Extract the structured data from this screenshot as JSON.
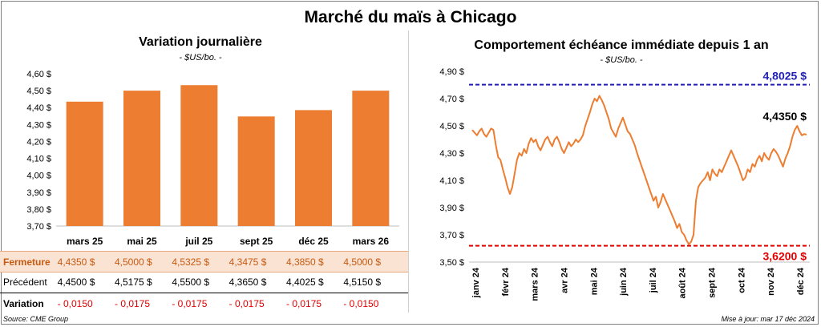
{
  "title": "Marché du maïs à Chicago",
  "left": {
    "title": "Variation journalière",
    "unit": "- $US/bo. -"
  },
  "right": {
    "title": "Comportement échéance immédiate depuis 1 an",
    "unit": "- $US/bo. -"
  },
  "table": {
    "fermeture_label": "Fermeture",
    "fermeture": [
      "4,4350  $",
      "4,5000  $",
      "4,5325  $",
      "4,3475  $",
      "4,3850  $",
      "4,5000  $"
    ],
    "precedent_label": "Précédent",
    "precedent": [
      "4,4500  $",
      "4,5175  $",
      "4,5500  $",
      "4,3650  $",
      "4,4025  $",
      "4,5150  $"
    ],
    "variation_label": "Variation",
    "variation": [
      "- 0,0150",
      "- 0,0175",
      "- 0,0175",
      "- 0,0175",
      "- 0,0175",
      "- 0,0150"
    ]
  },
  "footer": {
    "source": "Source: CME Group",
    "updated": "Mise à jour: mar 17 déc 2024"
  },
  "colors": {
    "bar": "#ed7d31",
    "line": "#ed7d31",
    "high": "#1f1fb4",
    "low": "#e00000"
  },
  "chart_data": [
    {
      "type": "bar",
      "categories": [
        "mars 25",
        "mai 25",
        "juil 25",
        "sept 25",
        "déc 25",
        "mars 26"
      ],
      "values": [
        4.435,
        4.5,
        4.5325,
        4.3475,
        4.385,
        4.5
      ],
      "ylim": [
        3.7,
        4.6
      ],
      "yticks": [
        "3,70 $",
        "3,80 $",
        "3,90 $",
        "4,00 $",
        "4,10 $",
        "4,20 $",
        "4,30 $",
        "4,40 $",
        "4,50 $",
        "4,60 $"
      ]
    },
    {
      "type": "line",
      "xlabels": [
        "janv 24",
        "févr 24",
        "mars 24",
        "avr 24",
        "mai 24",
        "juin 24",
        "juil 24",
        "août 24",
        "sept 24",
        "oct 24",
        "nov 24",
        "déc 24"
      ],
      "ylim": [
        3.5,
        4.9
      ],
      "yticks": [
        "3,50 $",
        "3,70 $",
        "3,90 $",
        "4,10 $",
        "4,30 $",
        "4,50 $",
        "4,70 $",
        "4,90 $"
      ],
      "high": {
        "value": 4.8025,
        "label": "4,8025 $"
      },
      "low": {
        "value": 3.62,
        "label": "3,6200 $"
      },
      "last_label": "4,4350 $",
      "values": [
        4.47,
        4.45,
        4.43,
        4.46,
        4.48,
        4.44,
        4.42,
        4.45,
        4.48,
        4.47,
        4.36,
        4.27,
        4.25,
        4.18,
        4.12,
        4.05,
        4.0,
        4.05,
        4.15,
        4.25,
        4.3,
        4.28,
        4.33,
        4.3,
        4.37,
        4.41,
        4.38,
        4.4,
        4.35,
        4.32,
        4.36,
        4.4,
        4.42,
        4.38,
        4.35,
        4.4,
        4.42,
        4.38,
        4.33,
        4.3,
        4.34,
        4.38,
        4.35,
        4.37,
        4.4,
        4.38,
        4.4,
        4.43,
        4.5,
        4.55,
        4.6,
        4.66,
        4.7,
        4.68,
        4.72,
        4.69,
        4.65,
        4.6,
        4.55,
        4.48,
        4.45,
        4.42,
        4.48,
        4.52,
        4.56,
        4.51,
        4.46,
        4.44,
        4.4,
        4.36,
        4.3,
        4.25,
        4.2,
        4.15,
        4.1,
        4.05,
        4.0,
        3.95,
        3.98,
        3.9,
        3.94,
        4.0,
        3.96,
        3.92,
        3.88,
        3.84,
        3.8,
        3.75,
        3.78,
        3.72,
        3.7,
        3.66,
        3.63,
        3.65,
        3.7,
        3.95,
        4.05,
        4.08,
        4.1,
        4.12,
        4.16,
        4.1,
        4.18,
        4.15,
        4.13,
        4.18,
        4.16,
        4.2,
        4.24,
        4.28,
        4.32,
        4.28,
        4.24,
        4.2,
        4.15,
        4.1,
        4.12,
        4.18,
        4.16,
        4.22,
        4.2,
        4.25,
        4.28,
        4.24,
        4.3,
        4.27,
        4.25,
        4.3,
        4.33,
        4.31,
        4.28,
        4.24,
        4.2,
        4.26,
        4.3,
        4.35,
        4.42,
        4.47,
        4.5,
        4.46,
        4.43,
        4.44,
        4.435
      ]
    }
  ]
}
